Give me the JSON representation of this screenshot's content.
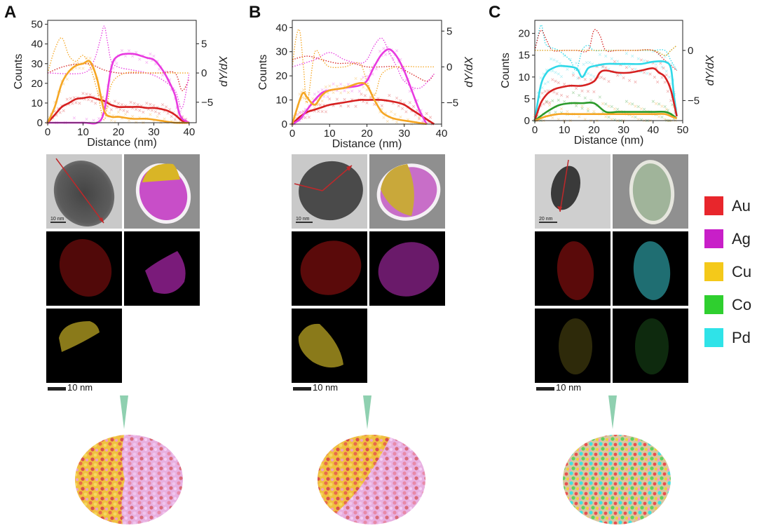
{
  "panels": [
    {
      "letter": "A",
      "tem_scale": "10 nm",
      "map_scale": "10 nm"
    },
    {
      "letter": "B",
      "tem_scale": "10 nm",
      "map_scale": "10 nm"
    },
    {
      "letter": "C",
      "tem_scale": "20 nm",
      "map_scale": "10 nm"
    }
  ],
  "legend": [
    {
      "label": "Au",
      "color": "#e8262c"
    },
    {
      "label": "Ag",
      "color": "#c81fc8"
    },
    {
      "label": "Cu",
      "color": "#f4c91a"
    },
    {
      "label": "Co",
      "color": "#2fcf2f"
    },
    {
      "label": "Pd",
      "color": "#2fe3e8"
    }
  ],
  "chart_data": [
    {
      "type": "line",
      "xlabel": "Distance (nm)",
      "ylabel": "Counts",
      "y2label": "dY/dX",
      "xlim": [
        0,
        42
      ],
      "xticks": [
        0,
        10,
        20,
        30,
        40
      ],
      "ylim": [
        0,
        52
      ],
      "yticks": [
        0,
        10,
        20,
        30,
        40,
        50
      ],
      "y2lim": [
        -8.5,
        9
      ],
      "y2ticks": [
        -5,
        0,
        5
      ],
      "series": [
        {
          "element": "Au",
          "color": "#d62020",
          "x": [
            0,
            2,
            4,
            6,
            8,
            10,
            12,
            14,
            16,
            18,
            20,
            22,
            24,
            26,
            28,
            30,
            32,
            34,
            36,
            38,
            40
          ],
          "y": [
            0,
            4,
            8,
            10,
            12,
            12.5,
            13,
            12,
            11,
            9,
            8,
            8,
            8,
            8,
            7.5,
            7.5,
            7,
            6,
            4,
            1,
            0
          ]
        },
        {
          "element": "Ag",
          "color": "#e83ae0",
          "x": [
            0,
            10,
            14,
            16,
            18,
            20,
            24,
            28,
            30,
            32,
            34,
            36,
            37,
            38,
            40
          ],
          "y": [
            0,
            0,
            0,
            6,
            28,
            34,
            35,
            33,
            32,
            28,
            22,
            14,
            6,
            2,
            0
          ]
        },
        {
          "element": "Cu",
          "color": "#f5a623",
          "x": [
            0,
            2,
            4,
            6,
            8,
            10,
            12,
            14,
            16,
            18,
            20,
            24,
            28,
            32,
            36,
            40
          ],
          "y": [
            0,
            8,
            20,
            26,
            29,
            30,
            31,
            22,
            6,
            3,
            3,
            2,
            2,
            1,
            0,
            0
          ]
        }
      ],
      "derivative_series": [
        {
          "element": "Au",
          "color": "#d62020",
          "x": [
            0,
            4,
            8,
            12,
            16,
            20,
            24,
            28,
            32,
            36,
            38,
            40
          ],
          "y": [
            0,
            1,
            1.5,
            1.5,
            0.5,
            0,
            0,
            0,
            0,
            0,
            -3,
            -1
          ]
        },
        {
          "element": "Ag",
          "color": "#e83ae0",
          "x": [
            0,
            10,
            13,
            15,
            16,
            17,
            18,
            20,
            24,
            28,
            32,
            36,
            38,
            40
          ],
          "y": [
            0,
            0,
            2,
            6,
            8,
            5,
            2,
            1,
            0.5,
            0,
            -1,
            -3,
            -6,
            0
          ]
        },
        {
          "element": "Cu",
          "color": "#f5a623",
          "x": [
            0,
            2,
            4,
            6,
            8,
            10,
            12,
            14,
            16,
            18,
            22,
            28,
            34,
            40
          ],
          "y": [
            0,
            4,
            6,
            3,
            2,
            3,
            1,
            -3,
            -8,
            -2,
            0,
            0,
            0,
            0
          ]
        }
      ]
    },
    {
      "type": "line",
      "xlabel": "Distance (nm)",
      "ylabel": "Counts",
      "y2label": "dY/dX",
      "xlim": [
        0,
        40
      ],
      "xticks": [
        0,
        10,
        20,
        30,
        40
      ],
      "ylim": [
        0,
        43
      ],
      "yticks": [
        0,
        10,
        20,
        30,
        40
      ],
      "y2lim": [
        -8,
        6.5
      ],
      "y2ticks": [
        -5,
        0,
        5
      ],
      "series": [
        {
          "element": "Au",
          "color": "#d62020",
          "x": [
            0,
            2,
            4,
            6,
            8,
            10,
            14,
            18,
            20,
            24,
            28,
            30,
            32,
            34,
            36,
            38
          ],
          "y": [
            0,
            3,
            5,
            6,
            7,
            8,
            9,
            10,
            10,
            10,
            9,
            8,
            6,
            4,
            2,
            0
          ]
        },
        {
          "element": "Ag",
          "color": "#e83ae0",
          "x": [
            0,
            2,
            4,
            6,
            8,
            10,
            14,
            18,
            20,
            22,
            24,
            26,
            28,
            30,
            32,
            34,
            36
          ],
          "y": [
            0,
            2,
            6,
            10,
            13,
            14,
            15,
            16,
            18,
            24,
            29,
            31,
            28,
            22,
            14,
            6,
            0
          ]
        },
        {
          "element": "Cu",
          "color": "#f5a623",
          "x": [
            0,
            2,
            3,
            4,
            6,
            8,
            10,
            14,
            18,
            20,
            22,
            24,
            26,
            28,
            32,
            36
          ],
          "y": [
            0,
            10,
            13,
            11,
            8,
            12,
            14,
            15,
            17,
            16,
            10,
            5,
            3,
            2,
            1,
            0
          ]
        }
      ],
      "derivative_series": [
        {
          "element": "Au",
          "color": "#d62020",
          "x": [
            0,
            4,
            8,
            12,
            16,
            20,
            24,
            28,
            32,
            36,
            38
          ],
          "y": [
            1,
            1.5,
            1,
            0.5,
            0.5,
            0,
            0,
            0,
            -1,
            -2,
            -1
          ]
        },
        {
          "element": "Ag",
          "color": "#e83ae0",
          "x": [
            0,
            6,
            10,
            14,
            18,
            20,
            22,
            24,
            26,
            28,
            30,
            34,
            38
          ],
          "y": [
            0,
            1,
            2,
            1,
            0.5,
            1,
            3,
            4,
            2,
            0,
            -2,
            -3,
            -1
          ]
        },
        {
          "element": "Cu",
          "color": "#f5a623",
          "x": [
            0,
            1,
            2,
            3,
            4,
            6,
            8,
            10,
            14,
            18,
            20,
            22,
            24,
            28,
            34,
            38
          ],
          "y": [
            0,
            4,
            5,
            0,
            -5,
            2,
            1,
            0,
            0,
            0.5,
            -2,
            -4,
            -1,
            0,
            0,
            0
          ]
        }
      ]
    },
    {
      "type": "line",
      "xlabel": "Distance (nm)",
      "ylabel": "Counts",
      "y2label": "dY/dX",
      "xlim": [
        0,
        50
      ],
      "xticks": [
        0,
        10,
        20,
        30,
        40,
        50
      ],
      "ylim": [
        0,
        23
      ],
      "yticks": [
        0,
        5,
        10,
        15,
        20
      ],
      "y2lim": [
        -7,
        3
      ],
      "y2ticks": [
        -5,
        0
      ],
      "series": [
        {
          "element": "Pd",
          "color": "#2fd8e8",
          "x": [
            0,
            2,
            4,
            6,
            8,
            10,
            14,
            16,
            18,
            20,
            24,
            28,
            32,
            36,
            40,
            44,
            46,
            47,
            48
          ],
          "y": [
            0,
            8,
            11,
            12,
            12.5,
            12.5,
            12,
            10,
            12,
            12.5,
            13,
            13,
            13,
            13,
            13.5,
            13.5,
            12,
            6,
            1
          ]
        },
        {
          "element": "Au",
          "color": "#d62020",
          "x": [
            0,
            2,
            4,
            6,
            8,
            12,
            16,
            20,
            22,
            24,
            28,
            32,
            36,
            40,
            42,
            44,
            46,
            48
          ],
          "y": [
            0,
            4,
            6,
            7,
            7.5,
            8,
            8,
            9,
            11,
            11.5,
            11,
            11,
            11.5,
            12,
            11,
            10,
            7,
            1
          ]
        },
        {
          "element": "Co",
          "color": "#2a9a2a",
          "x": [
            0,
            4,
            8,
            12,
            16,
            20,
            24,
            28,
            32,
            36,
            40,
            44,
            46,
            48
          ],
          "y": [
            0,
            2,
            3.5,
            4,
            4,
            4,
            2,
            2,
            2,
            2,
            2,
            2,
            1.5,
            0.5
          ]
        },
        {
          "element": "Cu",
          "color": "#f5a623",
          "x": [
            0,
            4,
            8,
            12,
            16,
            20,
            24,
            28,
            32,
            36,
            40,
            44,
            46,
            48
          ],
          "y": [
            0,
            1,
            1.5,
            1.5,
            1.5,
            1.5,
            1.5,
            1.5,
            1.5,
            1.5,
            1.5,
            1.5,
            1,
            0.5
          ]
        }
      ],
      "derivative_series": [
        {
          "element": "Pd",
          "color": "#2fd8e8",
          "x": [
            0,
            2,
            3,
            4,
            8,
            12,
            14,
            16,
            18,
            20,
            24,
            30,
            36,
            40,
            44,
            46,
            48
          ],
          "y": [
            0,
            2.5,
            1.5,
            0.5,
            0,
            -1,
            -2,
            0,
            0.5,
            0,
            0,
            0,
            0,
            0,
            0,
            -1,
            -2
          ]
        },
        {
          "element": "Au",
          "color": "#d62020",
          "x": [
            0,
            2,
            4,
            6,
            10,
            14,
            18,
            20,
            22,
            24,
            28,
            34,
            40,
            44,
            46,
            48
          ],
          "y": [
            0,
            2,
            1,
            0,
            0,
            0,
            0,
            2,
            1.5,
            0,
            0,
            0,
            0,
            -1,
            -1.5,
            -2
          ]
        },
        {
          "element": "Co",
          "color": "#2a9a2a",
          "x": [
            0,
            8,
            16,
            24,
            32,
            40,
            44,
            46,
            48
          ],
          "y": [
            0,
            0,
            0,
            0,
            0,
            0,
            -0.5,
            0,
            0.5
          ]
        },
        {
          "element": "Cu",
          "color": "#f5a623",
          "x": [
            0,
            8,
            16,
            24,
            32,
            40,
            44,
            46,
            48
          ],
          "y": [
            0,
            0,
            0,
            0,
            0,
            0,
            -0.5,
            0,
            0.5
          ]
        }
      ]
    }
  ]
}
